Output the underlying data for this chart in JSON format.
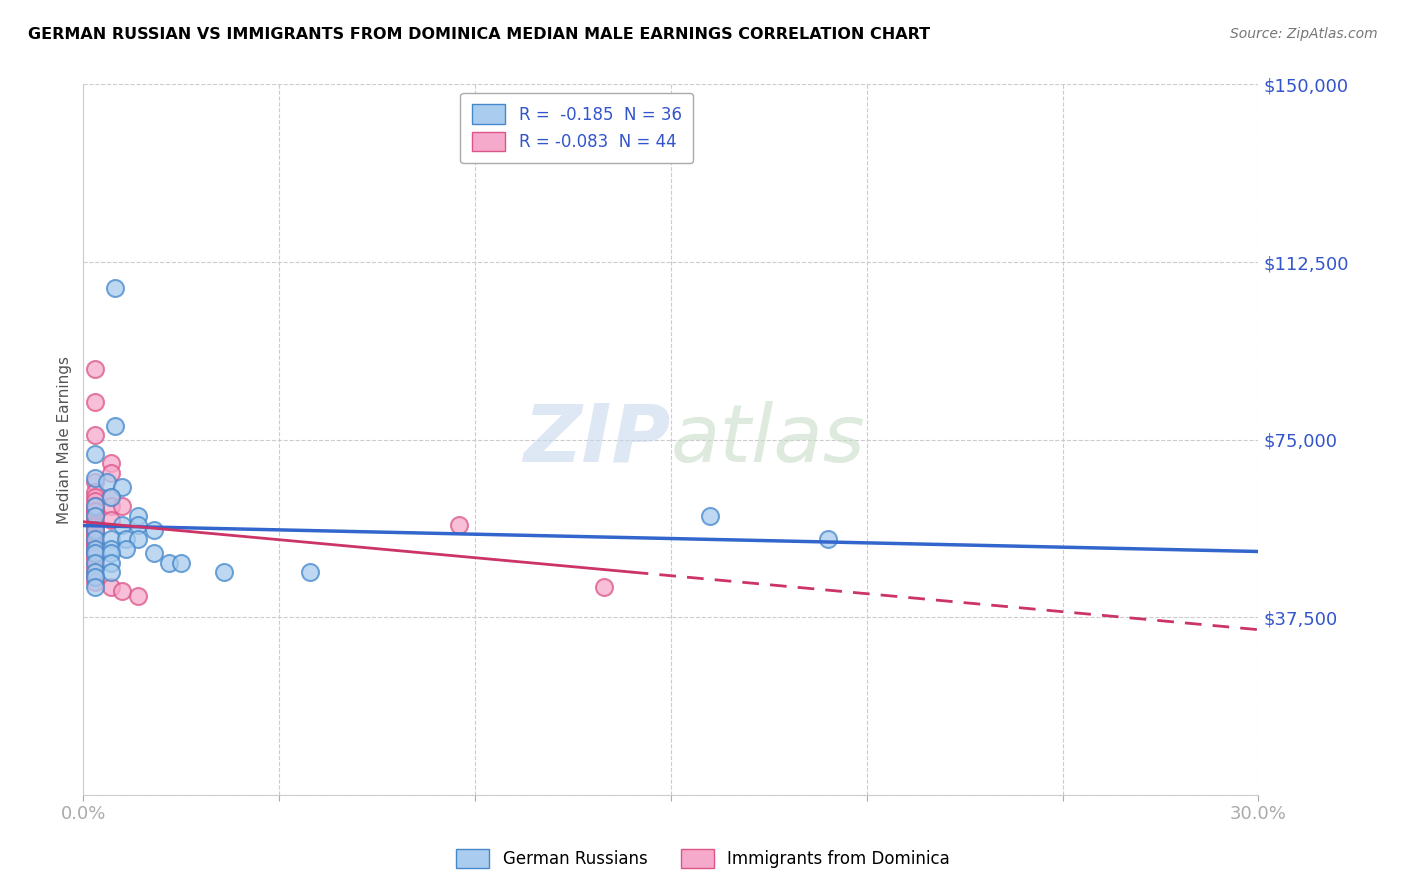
{
  "title": "GERMAN RUSSIAN VS IMMIGRANTS FROM DOMINICA MEDIAN MALE EARNINGS CORRELATION CHART",
  "source": "Source: ZipAtlas.com",
  "ylabel": "Median Male Earnings",
  "xlim": [
    0.0,
    0.3
  ],
  "ylim": [
    0,
    150000
  ],
  "yticks": [
    0,
    37500,
    75000,
    112500,
    150000
  ],
  "ytick_labels": [
    "",
    "$37,500",
    "$75,000",
    "$112,500",
    "$150,000"
  ],
  "xticks": [
    0.0,
    0.05,
    0.1,
    0.15,
    0.2,
    0.25,
    0.3
  ],
  "xtick_labels": [
    "0.0%",
    "",
    "",
    "",
    "",
    "",
    "30.0%"
  ],
  "watermark_zip": "ZIP",
  "watermark_atlas": "atlas",
  "legend_item1": "R =  -0.185  N = 36",
  "legend_item2": "R = -0.083  N = 44",
  "legend_labels": [
    "German Russians",
    "Immigrants from Dominica"
  ],
  "blue_line_color": "#3366cc",
  "pink_line_color": "#cc3366",
  "blue_scatter_face": "#aaccee",
  "blue_scatter_edge": "#4488cc",
  "pink_scatter_face": "#f5aacc",
  "pink_scatter_edge": "#dd5588",
  "axis_label_color": "#3355cc",
  "title_color": "#000000",
  "background_color": "#ffffff",
  "grid_color": "#cccccc",
  "blue_points": [
    [
      0.008,
      107000
    ],
    [
      0.008,
      78000
    ],
    [
      0.003,
      72000
    ],
    [
      0.003,
      67000
    ],
    [
      0.006,
      66000
    ],
    [
      0.01,
      65000
    ],
    [
      0.007,
      63000
    ],
    [
      0.003,
      61000
    ],
    [
      0.003,
      59000
    ],
    [
      0.014,
      59000
    ],
    [
      0.01,
      57000
    ],
    [
      0.014,
      57000
    ],
    [
      0.018,
      56000
    ],
    [
      0.003,
      56000
    ],
    [
      0.003,
      54000
    ],
    [
      0.007,
      54000
    ],
    [
      0.011,
      54000
    ],
    [
      0.014,
      54000
    ],
    [
      0.003,
      52000
    ],
    [
      0.007,
      52000
    ],
    [
      0.011,
      52000
    ],
    [
      0.003,
      51000
    ],
    [
      0.007,
      51000
    ],
    [
      0.018,
      51000
    ],
    [
      0.003,
      49000
    ],
    [
      0.007,
      49000
    ],
    [
      0.022,
      49000
    ],
    [
      0.025,
      49000
    ],
    [
      0.003,
      47000
    ],
    [
      0.007,
      47000
    ],
    [
      0.036,
      47000
    ],
    [
      0.058,
      47000
    ],
    [
      0.003,
      46000
    ],
    [
      0.003,
      44000
    ],
    [
      0.16,
      59000
    ],
    [
      0.19,
      54000
    ]
  ],
  "pink_points": [
    [
      0.003,
      90000
    ],
    [
      0.003,
      83000
    ],
    [
      0.003,
      76000
    ],
    [
      0.007,
      70000
    ],
    [
      0.007,
      68000
    ],
    [
      0.003,
      66000
    ],
    [
      0.003,
      64000
    ],
    [
      0.003,
      63000
    ],
    [
      0.007,
      63000
    ],
    [
      0.003,
      62000
    ],
    [
      0.003,
      61000
    ],
    [
      0.007,
      61000
    ],
    [
      0.01,
      61000
    ],
    [
      0.003,
      60000
    ],
    [
      0.003,
      60000
    ],
    [
      0.003,
      59000
    ],
    [
      0.003,
      58000
    ],
    [
      0.007,
      58000
    ],
    [
      0.003,
      57500
    ],
    [
      0.003,
      57000
    ],
    [
      0.003,
      56500
    ],
    [
      0.003,
      56000
    ],
    [
      0.003,
      55500
    ],
    [
      0.003,
      55000
    ],
    [
      0.003,
      54500
    ],
    [
      0.003,
      54000
    ],
    [
      0.003,
      53500
    ],
    [
      0.003,
      53000
    ],
    [
      0.003,
      52500
    ],
    [
      0.003,
      52000
    ],
    [
      0.003,
      51500
    ],
    [
      0.003,
      51000
    ],
    [
      0.003,
      50500
    ],
    [
      0.003,
      50000
    ],
    [
      0.003,
      49000
    ],
    [
      0.003,
      48000
    ],
    [
      0.003,
      47000
    ],
    [
      0.003,
      46000
    ],
    [
      0.003,
      45000
    ],
    [
      0.007,
      44000
    ],
    [
      0.01,
      43000
    ],
    [
      0.014,
      42000
    ],
    [
      0.096,
      57000
    ],
    [
      0.133,
      44000
    ]
  ]
}
